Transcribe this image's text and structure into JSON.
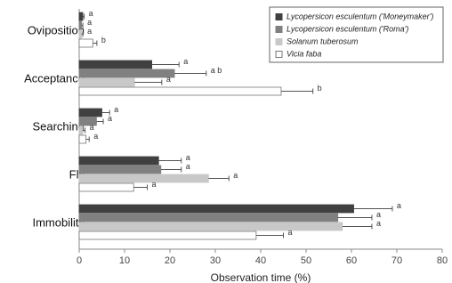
{
  "chart_data": {
    "type": "hbar",
    "x_label": "Observation time (%)",
    "categories": [
      "Oviposition",
      "Acceptance",
      "Searching",
      "Fly",
      "Immobility"
    ],
    "xlim": [
      0,
      80
    ],
    "xticks": [
      0,
      10,
      20,
      30,
      40,
      50,
      60,
      70,
      80
    ],
    "legend": "top-right",
    "series": [
      {
        "name": "Lycopersicon esculentum ('Moneymaker')",
        "color": "#404040",
        "values": [
          0.8,
          16,
          5,
          17.5,
          60.5
        ],
        "errors": [
          0.3,
          6,
          1.7,
          5,
          8.5
        ],
        "letters": [
          "a",
          "a",
          "a",
          "a",
          "a"
        ]
      },
      {
        "name": "Lycopersicon esculentum ('Roma')",
        "color": "#808080",
        "values": [
          0.5,
          21,
          3.8,
          18,
          57
        ],
        "errors": [
          0.3,
          7,
          1.5,
          4.5,
          7.5
        ],
        "letters": [
          "a",
          "a b",
          "a",
          "a",
          "a"
        ]
      },
      {
        "name": "Solanum tuberosum",
        "color": "#c8c8c8",
        "values": [
          0.5,
          12.2,
          0.8,
          28.5,
          58
        ],
        "errors": [
          0.3,
          6,
          0.5,
          4.5,
          6.5
        ],
        "letters": [
          "a",
          "a",
          "a",
          "a",
          "a"
        ]
      },
      {
        "name": "Vicia faba",
        "color": "#ffffff",
        "values": [
          3,
          44.5,
          1.5,
          12,
          39
        ],
        "errors": [
          0.9,
          7,
          0.7,
          3,
          6
        ],
        "letters": [
          "b",
          "b",
          "a",
          "a",
          "a"
        ]
      }
    ]
  }
}
